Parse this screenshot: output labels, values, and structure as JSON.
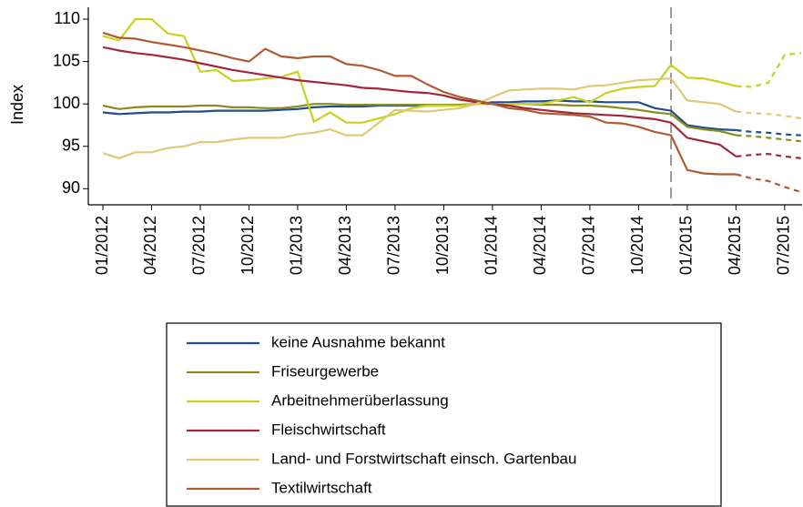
{
  "chart_data": {
    "type": "line",
    "y_label": "Index",
    "categories": [
      "01/2012",
      null,
      null,
      "04/2012",
      null,
      null,
      "07/2012",
      null,
      null,
      "10/2012",
      null,
      null,
      "01/2013",
      null,
      null,
      "04/2013",
      null,
      null,
      "07/2013",
      null,
      null,
      "10/2013",
      null,
      null,
      "01/2014",
      null,
      null,
      "04/2014",
      null,
      null,
      "07/2014",
      null,
      null,
      "10/2014",
      null,
      null,
      "01/2015",
      null,
      null,
      "04/2015",
      null,
      null,
      "07/2015",
      null
    ],
    "ylim": [
      88.1,
      111.4
    ],
    "yticks": [
      90,
      95,
      100,
      105,
      110
    ],
    "vline_index": 35,
    "dashed_from_index": 39,
    "series": [
      {
        "name": "keine Ausnahme bekannt",
        "color": "#1f4e8c",
        "values": [
          99,
          98.8,
          98.9,
          99,
          99,
          99.1,
          99.1,
          99.2,
          99.2,
          99.2,
          99.2,
          99.3,
          99.4,
          99.6,
          99.7,
          99.7,
          99.7,
          99.8,
          99.8,
          99.8,
          99.8,
          99.8,
          99.9,
          100,
          100.2,
          100.2,
          100.3,
          100.3,
          100.4,
          100.3,
          100.3,
          100.2,
          100.2,
          100.2,
          99.5,
          99.2,
          97.5,
          97.2,
          97,
          96.9,
          96.7,
          96.6,
          96.4,
          96.3
        ]
      },
      {
        "name": "Friseurgewerbe",
        "color": "#8c8c1e",
        "values": [
          99.8,
          99.4,
          99.6,
          99.7,
          99.7,
          99.7,
          99.8,
          99.8,
          99.6,
          99.6,
          99.5,
          99.5,
          99.7,
          100,
          100,
          99.9,
          99.9,
          99.9,
          99.9,
          99.9,
          99.9,
          99.9,
          99.9,
          100,
          100,
          100,
          100,
          99.9,
          99.9,
          99.8,
          99.8,
          99.7,
          99.5,
          99.3,
          99,
          98.8,
          97.3,
          97,
          96.8,
          96.3,
          96.2,
          96,
          95.8,
          95.6
        ]
      },
      {
        "name": "Arbeitnehmerüberlassung",
        "color": "#c8d21e",
        "values": [
          108,
          107.5,
          110,
          110,
          108.3,
          108,
          103.8,
          104,
          102.7,
          102.8,
          103,
          103.2,
          103.8,
          97.9,
          99,
          97.8,
          97.8,
          98.3,
          98.8,
          99.5,
          99.8,
          99.8,
          99.8,
          100,
          100,
          100,
          100,
          100,
          100.4,
          100.8,
          100.2,
          101.3,
          101.8,
          102,
          102.1,
          104.6,
          103.1,
          103,
          102.6,
          102.1,
          102,
          102.5,
          105.8,
          106
        ]
      },
      {
        "name": "Fleischwirtschaft",
        "color": "#a0283c",
        "values": [
          106.7,
          106.3,
          106,
          105.8,
          105.5,
          105.2,
          104.8,
          104.4,
          104,
          103.7,
          103.4,
          103.1,
          102.8,
          102.6,
          102.4,
          102.2,
          101.9,
          101.8,
          101.6,
          101.4,
          101.3,
          101,
          100.5,
          100.2,
          100,
          99.8,
          99.5,
          99.3,
          99.1,
          98.9,
          98.8,
          98.7,
          98.6,
          98.4,
          98.2,
          97.8,
          96,
          95.6,
          95.2,
          93.8,
          94,
          94.1,
          93.8,
          93.6
        ]
      },
      {
        "name": "Land- und Forstwirtschaft einsch. Gartenbau",
        "color": "#e0c878",
        "values": [
          94.2,
          93.6,
          94.3,
          94.3,
          94.8,
          95,
          95.5,
          95.5,
          95.8,
          96,
          96,
          96,
          96.4,
          96.6,
          97,
          96.3,
          96.3,
          97.8,
          99.3,
          99.2,
          99.1,
          99.3,
          99.5,
          100,
          100.8,
          101.6,
          101.7,
          101.8,
          101.8,
          101.7,
          102.1,
          102.2,
          102.5,
          102.8,
          102.9,
          103,
          100.4,
          100.2,
          100,
          99.1,
          98.9,
          98.8,
          98.6,
          98.3
        ]
      },
      {
        "name": "Textilwirtschaft",
        "color": "#b05a32",
        "values": [
          108.4,
          107.8,
          107.7,
          107.3,
          107,
          106.7,
          106.3,
          105.9,
          105.4,
          105,
          106.5,
          105.6,
          105.4,
          105.6,
          105.6,
          104.7,
          104.5,
          104,
          103.3,
          103.3,
          102.3,
          101.4,
          100.8,
          100.4,
          100,
          99.5,
          99.3,
          98.9,
          98.8,
          98.7,
          98.5,
          97.8,
          97.7,
          97.3,
          96.7,
          96.3,
          92.2,
          91.8,
          91.7,
          91.7,
          91.2,
          90.9,
          90.2,
          89.6
        ]
      }
    ]
  }
}
